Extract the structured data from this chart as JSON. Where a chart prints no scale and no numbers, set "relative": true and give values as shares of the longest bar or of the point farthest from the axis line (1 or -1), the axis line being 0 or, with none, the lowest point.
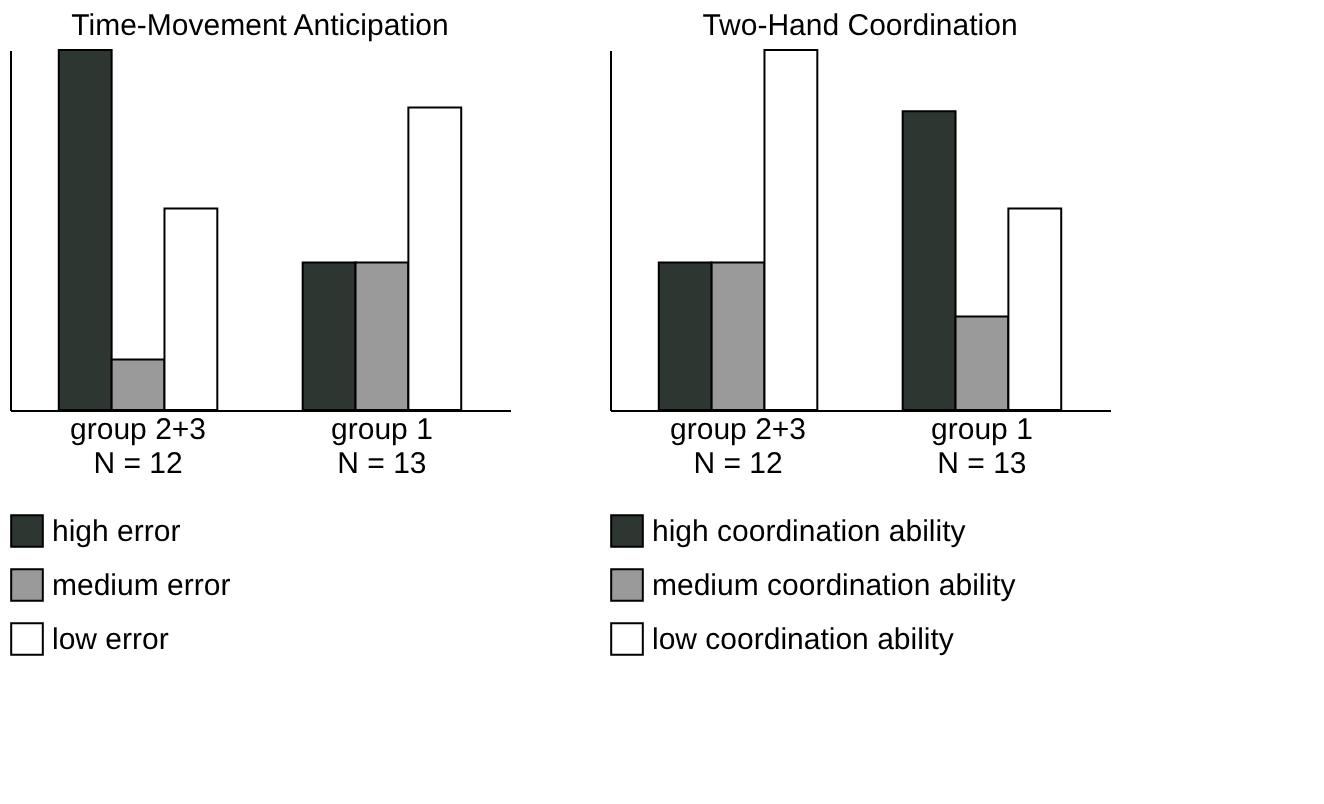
{
  "chart_data": [
    {
      "type": "bar",
      "title": "Time-Movement Anticipation",
      "relative": true,
      "categories": [
        "group 2+3\nN = 12",
        "group 1\nN = 13"
      ],
      "legend": "bottom",
      "grid": false,
      "series": [
        {
          "name": "high error",
          "color": "#2e3632",
          "values": [
            1,
            0.41
          ]
        },
        {
          "name": "medium error",
          "color": "#9a9a9a",
          "values": [
            0.14,
            0.41
          ]
        },
        {
          "name": "low error",
          "color": "#ffffff",
          "values": [
            0.56,
            0.84
          ]
        }
      ]
    },
    {
      "type": "bar",
      "title": "Two-Hand Coordination",
      "relative": true,
      "categories": [
        "group 2+3\nN = 12",
        "group 1\nN = 13"
      ],
      "legend": "bottom",
      "grid": false,
      "series": [
        {
          "name": "high coordination ability",
          "color": "#2e3632",
          "values": [
            0.41,
            0.83
          ]
        },
        {
          "name": "medium coordination ability",
          "color": "#9a9a9a",
          "values": [
            0.41,
            0.26
          ]
        },
        {
          "name": "low coordination ability",
          "color": "#ffffff",
          "values": [
            1,
            0.56
          ]
        }
      ]
    }
  ]
}
